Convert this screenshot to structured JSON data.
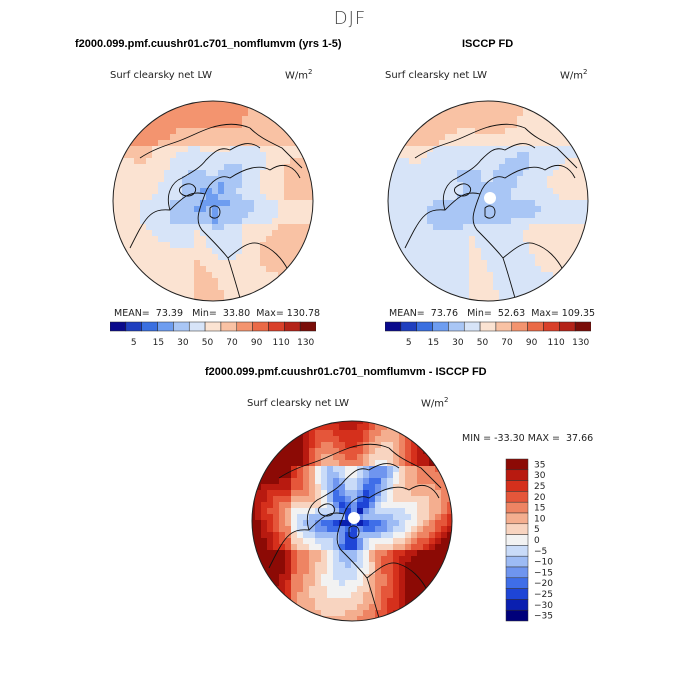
{
  "season": "DJF",
  "titles": {
    "left": "f2000.099.pmf.cuushr01.c701_nomflumvm (yrs 1-5)",
    "right": "ISCCP FD",
    "diff": "f2000.099.pmf.cuushr01.c701_nomflumvm - ISCCP FD"
  },
  "colors": {
    "coast": "#111111",
    "abs_scale": [
      "#0a0a8c",
      "#1f3fbf",
      "#3a6fe0",
      "#6e9df0",
      "#a9c6f5",
      "#d7e4f8",
      "#fbe3d2",
      "#f9c2a4",
      "#f3946f",
      "#ea6a47",
      "#d9402a",
      "#b42318",
      "#7a0d08"
    ],
    "diff_scale": [
      "#00007a",
      "#0a1fb0",
      "#1e45d6",
      "#3f6ee8",
      "#6f95ef",
      "#9dbbf4",
      "#c9dbf8",
      "#f2f2f2",
      "#f8d4c0",
      "#f4ae8f",
      "#ee8463",
      "#e5563a",
      "#d5301c",
      "#b81a10",
      "#8c0a05"
    ]
  },
  "chart_data": [
    {
      "type": "heatmap",
      "projection": "north-polar-stereographic",
      "title": "f2000.099.pmf.cuushr01.c701_nomflumvm (yrs 1-5)",
      "variable": "Surf clearsky net LW",
      "units": "W/m2",
      "stats": {
        "mean": 73.39,
        "min": 33.8,
        "max": 130.78
      },
      "stats_text": {
        "mean": "MEAN=  73.39",
        "min": "Min=  33.80",
        "max": "Max= 130.78"
      },
      "levels": [
        5,
        15,
        30,
        50,
        70,
        90,
        110,
        130
      ],
      "colorbar_ticks": [
        "5",
        "15",
        "30",
        "50",
        "70",
        "90",
        "110",
        "130"
      ],
      "field": {
        "pole_value": 40,
        "ocean_value": 110,
        "south_value": 100
      }
    },
    {
      "type": "heatmap",
      "projection": "north-polar-stereographic",
      "title": "ISCCP FD",
      "variable": "Surf clearsky net LW",
      "units": "W/m2",
      "stats": {
        "mean": 73.76,
        "min": 52.63,
        "max": 109.35
      },
      "stats_text": {
        "mean": "MEAN=  73.76",
        "min": "Min=  52.63",
        "max": "Max= 109.35"
      },
      "levels": [
        5,
        15,
        30,
        50,
        70,
        90,
        110,
        130
      ],
      "colorbar_ticks": [
        "5",
        "15",
        "30",
        "50",
        "70",
        "90",
        "110",
        "130"
      ],
      "field": {
        "pole_value": 55,
        "ocean_value": 90,
        "south_value": 80
      }
    },
    {
      "type": "heatmap",
      "projection": "north-polar-stereographic",
      "title": "f2000.099.pmf.cuushr01.c701_nomflumvm - ISCCP FD",
      "variable": "Surf clearsky net LW",
      "units": "W/m2",
      "minmax_text": "MIN = -33.30 MAX =  37.66",
      "stats": {
        "min": -33.3,
        "max": 37.66
      },
      "levels": [
        -35,
        -30,
        -25,
        -20,
        -15,
        -10,
        -5,
        0,
        5,
        10,
        15,
        20,
        25,
        30,
        35
      ],
      "colorbar_ticks": [
        "35",
        "30",
        "25",
        "20",
        "15",
        "10",
        "5",
        "0",
        "−5",
        "−10",
        "−15",
        "−20",
        "−25",
        "−30",
        "−35"
      ]
    }
  ]
}
